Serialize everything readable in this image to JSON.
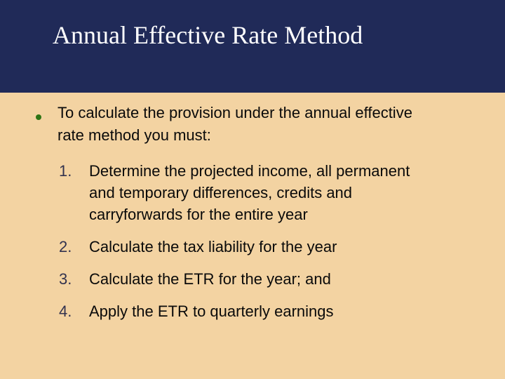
{
  "slide": {
    "title": "Annual Effective Rate Method",
    "colors": {
      "header_bg": "#202A58",
      "body_bg": "#F3D3A2",
      "title_color": "#FFFFFF",
      "text_color": "#0A0A0A",
      "bullet_green": "#2E7414",
      "number_color": "#32324E"
    },
    "intro": {
      "lines": [
        "To calculate the provision under the annual effective",
        "rate method you must:"
      ]
    },
    "items": [
      {
        "number": "1.",
        "lines": [
          "Determine the projected income, all permanent",
          "and temporary differences, credits and",
          "carryforwards for the entire year"
        ]
      },
      {
        "number": "2.",
        "lines": [
          "Calculate the tax liability for the year"
        ]
      },
      {
        "number": "3.",
        "lines": [
          "Calculate the ETR for the year; and"
        ]
      },
      {
        "number": "4.",
        "lines": [
          "Apply the ETR to quarterly earnings"
        ]
      }
    ]
  }
}
